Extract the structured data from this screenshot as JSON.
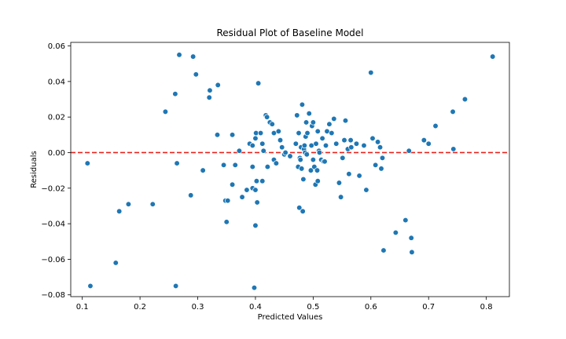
{
  "chart_data": {
    "type": "scatter",
    "title": "Residual Plot of Baseline Model",
    "xlabel": "Predicted Values",
    "ylabel": "Residuals",
    "xlim": [
      0.08,
      0.84
    ],
    "ylim": [
      -0.081,
      0.062
    ],
    "x_ticks": [
      0.1,
      0.2,
      0.3,
      0.4,
      0.5,
      0.6,
      0.7,
      0.8
    ],
    "x_tick_labels": [
      "0.1",
      "0.2",
      "0.3",
      "0.4",
      "0.5",
      "0.6",
      "0.7",
      "0.8"
    ],
    "y_ticks": [
      -0.08,
      -0.06,
      -0.04,
      -0.02,
      0.0,
      0.02,
      0.04,
      0.06
    ],
    "y_tick_labels": [
      "−0.08",
      "−0.06",
      "−0.04",
      "−0.02",
      "0.00",
      "0.02",
      "0.04",
      "0.06"
    ],
    "reference_line": {
      "y": 0.0,
      "color": "#e8221c",
      "style": "dashed"
    },
    "marker_color": "#1f77b4",
    "grid": false,
    "points": [
      [
        0.109,
        -0.006
      ],
      [
        0.114,
        -0.075
      ],
      [
        0.158,
        -0.062
      ],
      [
        0.164,
        -0.033
      ],
      [
        0.18,
        -0.029
      ],
      [
        0.222,
        -0.029
      ],
      [
        0.244,
        0.023
      ],
      [
        0.261,
        0.033
      ],
      [
        0.262,
        -0.075
      ],
      [
        0.264,
        -0.006
      ],
      [
        0.268,
        0.055
      ],
      [
        0.288,
        -0.024
      ],
      [
        0.292,
        0.054
      ],
      [
        0.297,
        0.044
      ],
      [
        0.309,
        -0.01
      ],
      [
        0.32,
        0.031
      ],
      [
        0.321,
        0.035
      ],
      [
        0.335,
        0.038
      ],
      [
        0.334,
        0.01
      ],
      [
        0.345,
        -0.007
      ],
      [
        0.348,
        -0.027
      ],
      [
        0.35,
        -0.039
      ],
      [
        0.352,
        -0.027
      ],
      [
        0.36,
        0.01
      ],
      [
        0.36,
        -0.018
      ],
      [
        0.365,
        -0.007
      ],
      [
        0.372,
        0.001
      ],
      [
        0.377,
        -0.025
      ],
      [
        0.385,
        -0.021
      ],
      [
        0.39,
        0.005
      ],
      [
        0.395,
        0.004
      ],
      [
        0.395,
        -0.008
      ],
      [
        0.395,
        -0.02
      ],
      [
        0.398,
        -0.076
      ],
      [
        0.4,
        -0.021
      ],
      [
        0.4,
        0.008
      ],
      [
        0.4,
        -0.041
      ],
      [
        0.401,
        0.011
      ],
      [
        0.402,
        -0.016
      ],
      [
        0.403,
        -0.028
      ],
      [
        0.405,
        0.039
      ],
      [
        0.409,
        0.011
      ],
      [
        0.412,
        -0.016
      ],
      [
        0.412,
        0.005
      ],
      [
        0.414,
        0.001
      ],
      [
        0.418,
        0.021
      ],
      [
        0.42,
        0.02
      ],
      [
        0.421,
        -0.008
      ],
      [
        0.425,
        0.017
      ],
      [
        0.429,
        0.016
      ],
      [
        0.432,
        -0.004
      ],
      [
        0.432,
        0.011
      ],
      [
        0.436,
        -0.006
      ],
      [
        0.44,
        0.012
      ],
      [
        0.443,
        0.007
      ],
      [
        0.446,
        0.003
      ],
      [
        0.45,
        -0.001
      ],
      [
        0.452,
        0.0
      ],
      [
        0.46,
        -0.002
      ],
      [
        0.47,
        0.005
      ],
      [
        0.472,
        0.021
      ],
      [
        0.474,
        -0.008
      ],
      [
        0.475,
        0.011
      ],
      [
        0.476,
        -0.031
      ],
      [
        0.477,
        -0.003
      ],
      [
        0.478,
        -0.004
      ],
      [
        0.479,
        0.003
      ],
      [
        0.48,
        -0.009
      ],
      [
        0.481,
        0.027
      ],
      [
        0.482,
        -0.033
      ],
      [
        0.483,
        -0.015
      ],
      [
        0.484,
        0.002
      ],
      [
        0.485,
        0.004
      ],
      [
        0.486,
        0.0
      ],
      [
        0.487,
        0.009
      ],
      [
        0.488,
        0.017
      ],
      [
        0.489,
        -0.001
      ],
      [
        0.49,
        0.011
      ],
      [
        0.493,
        0.022
      ],
      [
        0.496,
        -0.01
      ],
      [
        0.497,
        0.004
      ],
      [
        0.498,
        0.015
      ],
      [
        0.5,
        0.017
      ],
      [
        0.5,
        -0.004
      ],
      [
        0.502,
        -0.008
      ],
      [
        0.504,
        -0.018
      ],
      [
        0.505,
        0.005
      ],
      [
        0.507,
        -0.01
      ],
      [
        0.508,
        0.012
      ],
      [
        0.508,
        -0.016
      ],
      [
        0.51,
        0.001
      ],
      [
        0.511,
        0.0
      ],
      [
        0.514,
        -0.004
      ],
      [
        0.516,
        0.008
      ],
      [
        0.518,
        -0.005
      ],
      [
        0.52,
        -0.005
      ],
      [
        0.522,
        0.004
      ],
      [
        0.524,
        0.012
      ],
      [
        0.528,
        0.016
      ],
      [
        0.532,
        0.011
      ],
      [
        0.536,
        0.019
      ],
      [
        0.54,
        0.005
      ],
      [
        0.545,
        -0.017
      ],
      [
        0.548,
        -0.025
      ],
      [
        0.551,
        -0.003
      ],
      [
        0.554,
        0.007
      ],
      [
        0.556,
        0.018
      ],
      [
        0.56,
        0.002
      ],
      [
        0.562,
        -0.012
      ],
      [
        0.565,
        0.007
      ],
      [
        0.566,
        0.003
      ],
      [
        0.575,
        0.005
      ],
      [
        0.58,
        -0.013
      ],
      [
        0.588,
        0.004
      ],
      [
        0.592,
        -0.021
      ],
      [
        0.6,
        0.045
      ],
      [
        0.603,
        0.008
      ],
      [
        0.608,
        -0.007
      ],
      [
        0.612,
        0.006
      ],
      [
        0.616,
        0.003
      ],
      [
        0.618,
        -0.009
      ],
      [
        0.62,
        -0.003
      ],
      [
        0.622,
        -0.055
      ],
      [
        0.643,
        -0.045
      ],
      [
        0.66,
        -0.038
      ],
      [
        0.666,
        0.001
      ],
      [
        0.67,
        -0.048
      ],
      [
        0.671,
        -0.056
      ],
      [
        0.692,
        0.007
      ],
      [
        0.7,
        0.005
      ],
      [
        0.712,
        0.015
      ],
      [
        0.742,
        0.023
      ],
      [
        0.743,
        0.002
      ],
      [
        0.763,
        0.03
      ],
      [
        0.811,
        0.054
      ]
    ]
  }
}
